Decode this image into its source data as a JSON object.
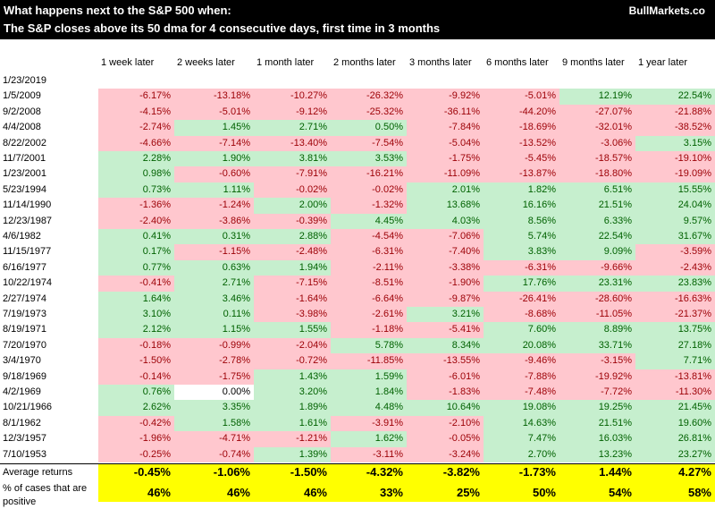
{
  "title": "What happens next to the S&P 500 when:",
  "subtitle": "The S&P closes above its 50 dma for 4 consecutive days, first time in 3 months",
  "brand": "BullMarkets.co",
  "colors": {
    "positive_bg": "#c6efce",
    "positive_text": "#006100",
    "negative_bg": "#ffc7ce",
    "negative_text": "#9c0006",
    "summary_bg": "#ffff00",
    "header_bg": "#000000"
  },
  "chart_data": {
    "type": "table",
    "columns": [
      "1 week later",
      "2 weeks later",
      "1 month later",
      "2 months later",
      "3 months later",
      "6 months later",
      "9 months later",
      "1 year later"
    ],
    "current_signal_date": "1/23/2019",
    "rows": [
      {
        "date": "1/5/2009",
        "values": [
          "-6.17%",
          "-13.18%",
          "-10.27%",
          "-26.32%",
          "-9.92%",
          "-5.01%",
          "12.19%",
          "22.54%"
        ]
      },
      {
        "date": "9/2/2008",
        "values": [
          "-4.15%",
          "-5.01%",
          "-9.12%",
          "-25.32%",
          "-36.11%",
          "-44.20%",
          "-27.07%",
          "-21.88%"
        ]
      },
      {
        "date": "4/4/2008",
        "values": [
          "-2.74%",
          "1.45%",
          "2.71%",
          "0.50%",
          "-7.84%",
          "-18.69%",
          "-32.01%",
          "-38.52%"
        ]
      },
      {
        "date": "8/22/2002",
        "values": [
          "-4.66%",
          "-7.14%",
          "-13.40%",
          "-7.54%",
          "-5.04%",
          "-13.52%",
          "-3.06%",
          "3.15%"
        ]
      },
      {
        "date": "11/7/2001",
        "values": [
          "2.28%",
          "1.90%",
          "3.81%",
          "3.53%",
          "-1.75%",
          "-5.45%",
          "-18.57%",
          "-19.10%"
        ]
      },
      {
        "date": "1/23/2001",
        "values": [
          "0.98%",
          "-0.60%",
          "-7.91%",
          "-16.21%",
          "-11.09%",
          "-13.87%",
          "-18.80%",
          "-19.09%"
        ]
      },
      {
        "date": "5/23/1994",
        "values": [
          "0.73%",
          "1.11%",
          "-0.02%",
          "-0.02%",
          "2.01%",
          "1.82%",
          "6.51%",
          "15.55%"
        ]
      },
      {
        "date": "11/14/1990",
        "values": [
          "-1.36%",
          "-1.24%",
          "2.00%",
          "-1.32%",
          "13.68%",
          "16.16%",
          "21.51%",
          "24.04%"
        ]
      },
      {
        "date": "12/23/1987",
        "values": [
          "-2.40%",
          "-3.86%",
          "-0.39%",
          "4.45%",
          "4.03%",
          "8.56%",
          "6.33%",
          "9.57%"
        ]
      },
      {
        "date": "4/6/1982",
        "values": [
          "0.41%",
          "0.31%",
          "2.88%",
          "-4.54%",
          "-7.06%",
          "5.74%",
          "22.54%",
          "31.67%"
        ]
      },
      {
        "date": "11/15/1977",
        "values": [
          "0.17%",
          "-1.15%",
          "-2.48%",
          "-6.31%",
          "-7.40%",
          "3.83%",
          "9.09%",
          "-3.59%"
        ]
      },
      {
        "date": "6/16/1977",
        "values": [
          "0.77%",
          "0.63%",
          "1.94%",
          "-2.11%",
          "-3.38%",
          "-6.31%",
          "-9.66%",
          "-2.43%"
        ]
      },
      {
        "date": "10/22/1974",
        "values": [
          "-0.41%",
          "2.71%",
          "-7.15%",
          "-8.51%",
          "-1.90%",
          "17.76%",
          "23.31%",
          "23.83%"
        ]
      },
      {
        "date": "2/27/1974",
        "values": [
          "1.64%",
          "3.46%",
          "-1.64%",
          "-6.64%",
          "-9.87%",
          "-26.41%",
          "-28.60%",
          "-16.63%"
        ]
      },
      {
        "date": "7/19/1973",
        "values": [
          "3.10%",
          "0.11%",
          "-3.98%",
          "-2.61%",
          "3.21%",
          "-8.68%",
          "-11.05%",
          "-21.37%"
        ]
      },
      {
        "date": "8/19/1971",
        "values": [
          "2.12%",
          "1.15%",
          "1.55%",
          "-1.18%",
          "-5.41%",
          "7.60%",
          "8.89%",
          "13.75%"
        ]
      },
      {
        "date": "7/20/1970",
        "values": [
          "-0.18%",
          "-0.99%",
          "-2.04%",
          "5.78%",
          "8.34%",
          "20.08%",
          "33.71%",
          "27.18%"
        ]
      },
      {
        "date": "3/4/1970",
        "values": [
          "-1.50%",
          "-2.78%",
          "-0.72%",
          "-11.85%",
          "-13.55%",
          "-9.46%",
          "-3.15%",
          "7.71%"
        ]
      },
      {
        "date": "9/18/1969",
        "values": [
          "-0.14%",
          "-1.75%",
          "1.43%",
          "1.59%",
          "-6.01%",
          "-7.88%",
          "-19.92%",
          "-13.81%"
        ]
      },
      {
        "date": "4/2/1969",
        "values": [
          "0.76%",
          "0.00%",
          "3.20%",
          "1.84%",
          "-1.83%",
          "-7.48%",
          "-7.72%",
          "-11.30%"
        ]
      },
      {
        "date": "10/21/1966",
        "values": [
          "2.62%",
          "3.35%",
          "1.89%",
          "4.48%",
          "10.64%",
          "19.08%",
          "19.25%",
          "21.45%"
        ]
      },
      {
        "date": "8/1/1962",
        "values": [
          "-0.42%",
          "1.58%",
          "1.61%",
          "-3.91%",
          "-2.10%",
          "14.63%",
          "21.51%",
          "19.60%"
        ]
      },
      {
        "date": "12/3/1957",
        "values": [
          "-1.96%",
          "-4.71%",
          "-1.21%",
          "1.62%",
          "-0.05%",
          "7.47%",
          "16.03%",
          "26.81%"
        ]
      },
      {
        "date": "7/10/1953",
        "values": [
          "-0.25%",
          "-0.74%",
          "1.39%",
          "-3.11%",
          "-3.24%",
          "2.70%",
          "13.23%",
          "23.27%"
        ]
      }
    ],
    "summary": [
      {
        "label": "Average returns",
        "values": [
          "-0.45%",
          "-1.06%",
          "-1.50%",
          "-4.32%",
          "-3.82%",
          "-1.73%",
          "1.44%",
          "4.27%"
        ]
      },
      {
        "label": "% of cases that are positive",
        "values": [
          "46%",
          "46%",
          "46%",
          "33%",
          "25%",
          "50%",
          "54%",
          "58%"
        ]
      }
    ]
  }
}
